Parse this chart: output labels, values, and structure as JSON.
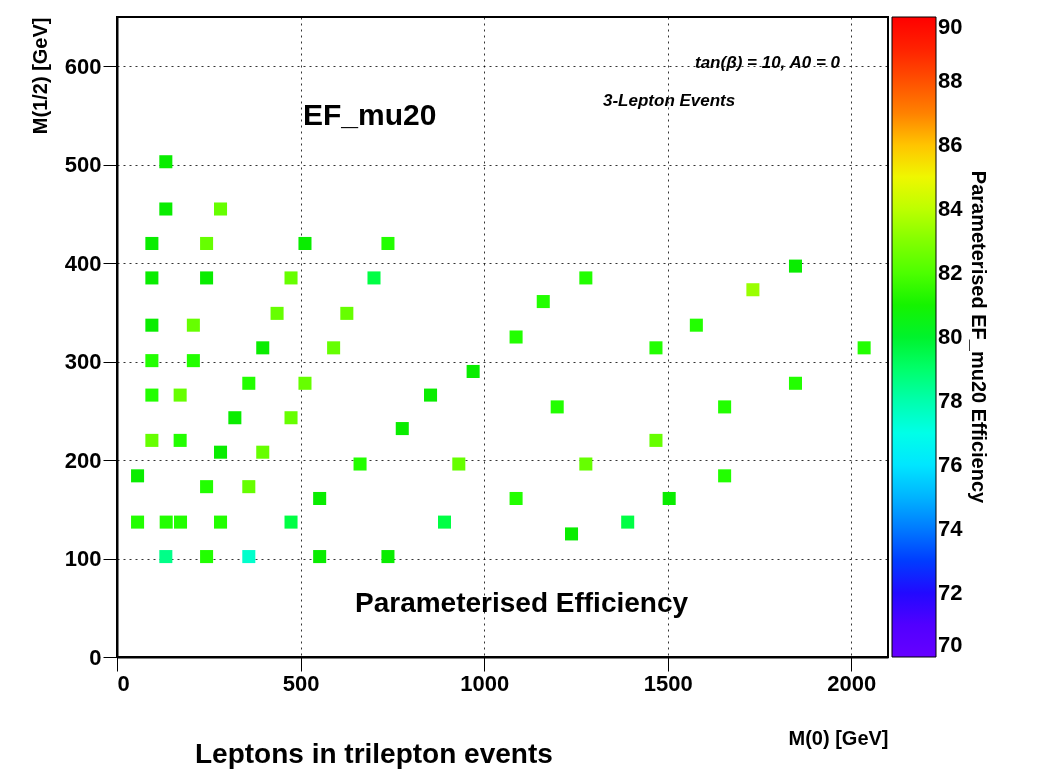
{
  "chart_data": {
    "type": "scatter",
    "xlabel": "M(0) [GeV]",
    "ylabel": "M(1/2) [GeV]",
    "clabel": "Parameterised EF_mu20 Efficiency",
    "annotations": [
      "tan(β) = 10, A0 = 0",
      "3-Lepton Events",
      "EF_mu20",
      "Parameterised Efficiency",
      "Leptons in trilepton events"
    ],
    "x": [
      133,
      133,
      282,
      95,
      244,
      512,
      738,
      95,
      244,
      474,
      700,
      436,
      626,
      95,
      208,
      397,
      590,
      95,
      208,
      970,
      359,
      512,
      95,
      172,
      854,
      321,
      474,
      777,
      95,
      172,
      282,
      397,
      662,
      931,
      56,
      244,
      359,
      552,
      56,
      134,
      173,
      282,
      474,
      892,
      133,
      244,
      359,
      552,
      738,
      1848,
      1277,
      1732,
      1161,
      1578,
      1087,
      1468,
      2035,
      1848,
      1199,
      1655,
      1468,
      1277,
      1655,
      1087,
      1504,
      1391,
      1238
    ],
    "values": [
      503,
      455,
      455,
      420,
      420,
      420,
      420,
      385,
      385,
      385,
      385,
      349,
      349,
      337,
      337,
      314,
      314,
      301,
      301,
      290,
      278,
      278,
      266,
      266,
      266,
      243,
      243,
      232,
      220,
      220,
      208,
      208,
      196,
      196,
      184,
      173,
      173,
      161,
      137,
      137,
      137,
      137,
      137,
      137,
      102,
      102,
      102,
      102,
      102,
      397,
      385,
      373,
      361,
      337,
      325,
      314,
      314,
      278,
      254,
      254,
      220,
      196,
      184,
      161,
      161,
      137,
      125
    ],
    "cvalues": [
      80.7,
      80.7,
      82.5,
      80.7,
      82.5,
      80.7,
      81.5,
      80.7,
      80.7,
      82.5,
      79.5,
      82.5,
      82.5,
      80.7,
      82.5,
      80.7,
      82.5,
      81.5,
      81.5,
      80.7,
      81.5,
      82.5,
      81.5,
      82.5,
      80.7,
      80.7,
      82.5,
      80.7,
      82.5,
      81.5,
      80.7,
      82.5,
      81.5,
      82.5,
      80.7,
      81.5,
      82.5,
      80.7,
      81.5,
      81.5,
      81.5,
      81.5,
      79.5,
      79.5,
      78.5,
      81.5,
      77.5,
      80.7,
      80.7,
      80.7,
      81.5,
      83.5,
      81.5,
      81.5,
      81.5,
      81.5,
      81.5,
      81.5,
      81.5,
      81.5,
      82.5,
      82.5,
      81.5,
      81.5,
      80.7,
      79.5,
      80.7
    ],
    "xlim": [
      0,
      2100
    ],
    "ylim": [
      0,
      650
    ],
    "xticks": [
      0,
      500,
      1000,
      1500,
      2000
    ],
    "yticks": [
      0,
      100,
      200,
      300,
      400,
      500,
      600
    ],
    "clim": [
      70,
      90
    ],
    "cticks": [
      70,
      72,
      74,
      76,
      78,
      80,
      82,
      84,
      86,
      88,
      90
    ],
    "grid": true,
    "marker": "square"
  }
}
